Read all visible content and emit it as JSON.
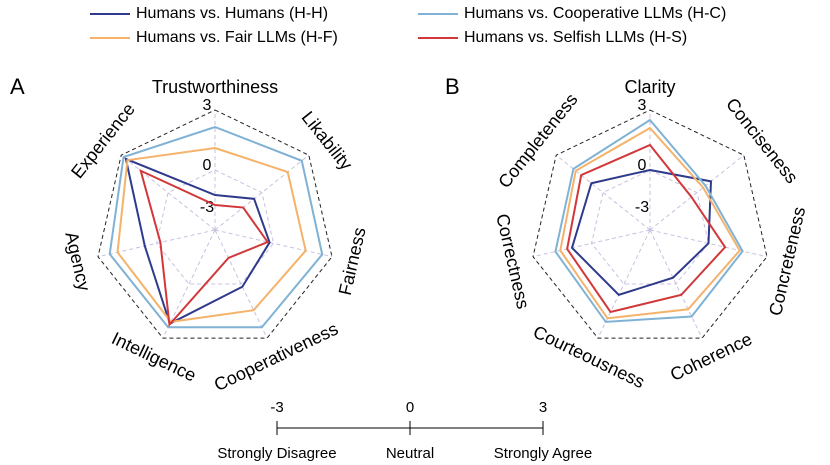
{
  "chart_data": [
    {
      "type": "radar",
      "panel": "A",
      "categories": [
        "Trustworthiness",
        "Likability",
        "Fairness",
        "Cooperativeness",
        "Intelligence",
        "Agency",
        "Experience"
      ],
      "ylim": [
        -3,
        3
      ],
      "yticks": [
        -3,
        0,
        3
      ],
      "series": [
        {
          "name": "Humans vs. Humans (H-H)",
          "color": "#2e3a8c",
          "values": [
            -1.25,
            -0.5,
            -0.2,
            0.15,
            2.2,
            0.6,
            2.7
          ]
        },
        {
          "name": "Humans vs. Cooperative LLMs (H-C)",
          "color": "#7fb2d5",
          "values": [
            2.15,
            2.55,
            2.5,
            2.4,
            2.4,
            2.4,
            2.85
          ]
        },
        {
          "name": "Humans vs. Fair LLMs (H-F)",
          "color": "#f5b26b",
          "values": [
            1.1,
            1.65,
            1.65,
            1.45,
            2.1,
            2.0,
            2.6
          ]
        },
        {
          "name": "Humans vs. Selfish LLMs (H-S)",
          "color": "#d2383a",
          "values": [
            -1.75,
            -1.2,
            -0.3,
            -1.45,
            2.25,
            -0.2,
            1.75
          ]
        }
      ]
    },
    {
      "type": "radar",
      "panel": "B",
      "categories": [
        "Clarity",
        "Conciseness",
        "Concreteness",
        "Coherence",
        "Courteousness",
        "Correctness",
        "Completeness"
      ],
      "ylim": [
        -3,
        3
      ],
      "yticks": [
        -3,
        0,
        3
      ],
      "series": [
        {
          "color": "#2e3a8c",
          "values": [
            0,
            0.9,
            0,
            -0.35,
            0.6,
            1.0,
            0.75
          ]
        },
        {
          "color": "#7fb2d5",
          "values": [
            2.5,
            0.55,
            1.75,
            1.8,
            2.1,
            1.85,
            1.9
          ]
        },
        {
          "color": "#f5b26b",
          "values": [
            2.1,
            0.4,
            1.6,
            1.4,
            1.9,
            1.6,
            1.75
          ]
        },
        {
          "color": "#d2383a",
          "values": [
            1.25,
            -0.35,
            0.85,
            0.6,
            1.55,
            1.25,
            1.4
          ]
        }
      ]
    }
  ],
  "scale": {
    "ticks": [
      -3,
      0,
      3
    ],
    "labels": [
      "Strongly Disagree",
      "Neutral",
      "Strongly Agree"
    ]
  }
}
